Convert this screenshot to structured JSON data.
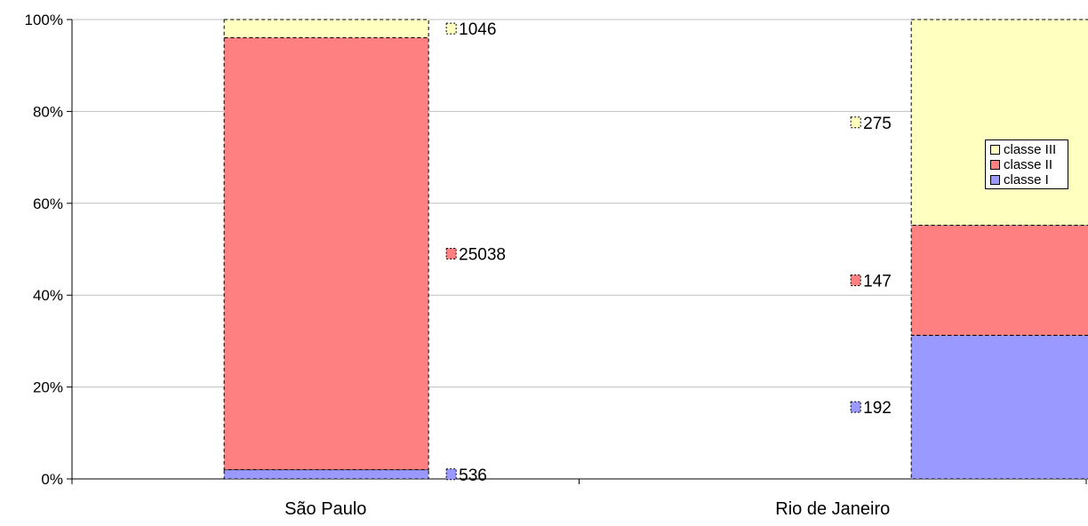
{
  "colors": {
    "classe_I": "#9999ff",
    "classe_II": "#ff8080",
    "classe_III": "#ffffc0",
    "grid": "#c0c0c0",
    "axis": "#000000"
  },
  "chart_data": {
    "type": "bar",
    "stacked": "percent",
    "title": "",
    "xlabel": "",
    "ylabel": "",
    "categories": [
      "São Paulo",
      "Rio de Janeiro"
    ],
    "series": [
      {
        "name": "classe I",
        "values": [
          536,
          192
        ],
        "labels": [
          "536",
          "192"
        ],
        "color_key": "classe_I"
      },
      {
        "name": "classe II",
        "values": [
          25038,
          147
        ],
        "labels": [
          "25038",
          "147"
        ],
        "color_key": "classe_II"
      },
      {
        "name": "classe III",
        "values": [
          1046,
          275
        ],
        "labels": [
          "1046",
          "275"
        ],
        "color_key": "classe_III"
      }
    ],
    "y_ticks": [
      "0%",
      "20%",
      "40%",
      "60%",
      "80%",
      "100%"
    ],
    "ylim": [
      0,
      100
    ],
    "grid": true,
    "legend_position": "right"
  }
}
